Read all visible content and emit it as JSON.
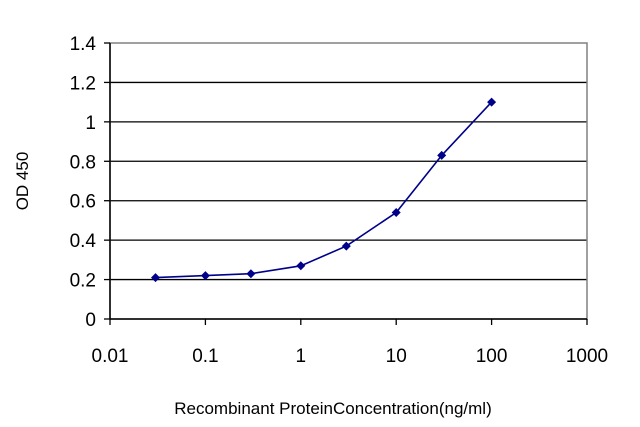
{
  "chart_data": {
    "type": "line",
    "xscale": "log",
    "xlabel": "Recombinant ProteinConcentration(ng/ml)",
    "ylabel": "OD 450",
    "xlim": [
      0.01,
      1000
    ],
    "ylim": [
      0,
      1.4
    ],
    "xticks": [
      0.01,
      0.1,
      1,
      10,
      100,
      1000
    ],
    "xtick_labels": [
      "0.01",
      "0.1",
      "1",
      "10",
      "100",
      "1000"
    ],
    "yticks": [
      0,
      0.2,
      0.4,
      0.6,
      0.8,
      1,
      1.2,
      1.4
    ],
    "ytick_labels": [
      "0",
      "0.2",
      "0.4",
      "0.6",
      "0.8",
      "1",
      "1.2",
      "1.4"
    ],
    "grid": "horizontal",
    "legend": "none",
    "series": [
      {
        "x": [
          0.03,
          0.1,
          0.3,
          1,
          3,
          10,
          30,
          100
        ],
        "y": [
          0.21,
          0.22,
          0.23,
          0.27,
          0.37,
          0.54,
          0.83,
          1.1
        ],
        "color": "#00008B"
      }
    ]
  }
}
